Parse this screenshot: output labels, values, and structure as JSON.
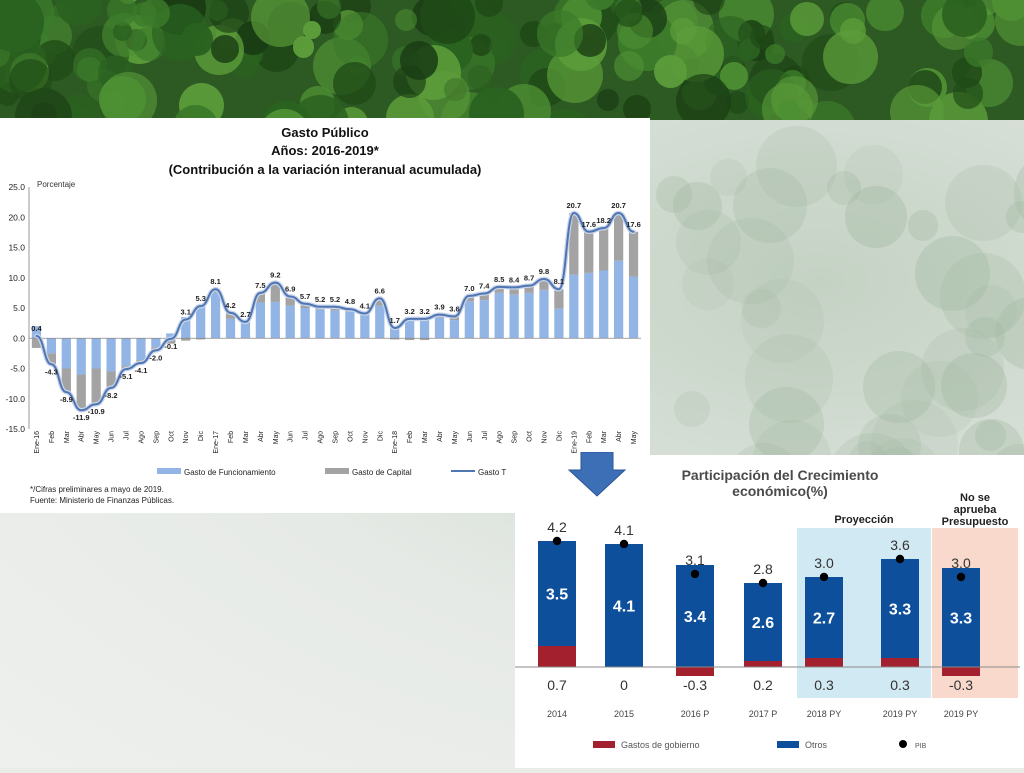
{
  "chart_data": [
    {
      "type": "bar",
      "title": "Gasto Público",
      "subtitle": "Años: 2016-2019*",
      "subtitle2": "(Contribución a la variación interanual acumulada)",
      "ylabel": "Porcentaje",
      "ylim": [
        -15,
        25
      ],
      "yticks": [
        "25.0",
        "20.0",
        "15.0",
        "10.0",
        "5.0",
        "0.0",
        "-5.0",
        "-10.0",
        "-15.0"
      ],
      "categories": [
        "Ene-16",
        "Feb",
        "Mar",
        "Abr",
        "May",
        "Jun",
        "Jul",
        "Ago",
        "Sep",
        "Oct",
        "Nov",
        "Dic",
        "Ene-17",
        "Feb",
        "Mar",
        "Abr",
        "May",
        "Jun",
        "Jul",
        "Ago",
        "Sep",
        "Oct",
        "Nov",
        "Dic",
        "Ene-18",
        "Feb",
        "Mar",
        "Abr",
        "May",
        "Jun",
        "Jul",
        "Ago",
        "Sep",
        "Oct",
        "Nov",
        "Dic",
        "Ene-19",
        "Feb",
        "Mar",
        "Abr",
        "May"
      ],
      "series": [
        {
          "name": "Gasto de Funcionamiento",
          "color": "#92b5e6",
          "values": [
            2.0,
            -2.5,
            -5.0,
            -6.0,
            -5.0,
            -5.5,
            -4.6,
            -3.6,
            -1.5,
            0.8,
            3.5,
            5.5,
            7.5,
            3.2,
            2.7,
            5.9,
            6.0,
            5.4,
            5.0,
            4.8,
            4.6,
            4.4,
            3.8,
            5.4,
            1.9,
            3.5,
            3.5,
            3.4,
            3.0,
            6.1,
            6.3,
            7.5,
            7.2,
            7.5,
            8.0,
            4.9,
            10.5,
            10.8,
            11.2,
            12.8,
            10.2
          ]
        },
        {
          "name": "Gasto de Capital",
          "color": "#a3a3a3",
          "values": [
            -1.6,
            -1.8,
            -3.9,
            -5.9,
            -5.9,
            -2.7,
            -0.5,
            -0.5,
            -0.5,
            -0.9,
            -0.4,
            -0.2,
            0.6,
            1.0,
            0.0,
            1.6,
            3.2,
            1.5,
            0.7,
            0.4,
            0.6,
            0.4,
            0.3,
            1.2,
            -0.2,
            -0.3,
            -0.3,
            0.5,
            0.6,
            0.9,
            1.1,
            1.0,
            1.2,
            1.2,
            1.8,
            3.2,
            10.2,
            6.8,
            7.0,
            7.9,
            7.4
          ]
        },
        {
          "name": "Gasto Total",
          "color": "#4f75b3",
          "values": [
            0.4,
            -4.3,
            -8.9,
            -11.9,
            -10.9,
            -8.2,
            -5.1,
            -4.1,
            -2.0,
            -0.1,
            3.1,
            5.3,
            8.1,
            4.2,
            2.7,
            7.5,
            9.2,
            6.9,
            5.7,
            5.2,
            5.2,
            4.8,
            4.1,
            6.6,
            1.7,
            3.2,
            3.2,
            3.9,
            3.6,
            7.0,
            7.4,
            8.5,
            8.4,
            8.7,
            9.8,
            8.1,
            20.7,
            17.6,
            18.2,
            20.7,
            17.6
          ]
        }
      ],
      "data_labels": [
        "0.4",
        "-4.3",
        "-8.9",
        "-11.9",
        "-10.9",
        "-8.2",
        "-5.1",
        "-4.1",
        "-2.0",
        "-0.1",
        "3.1",
        "5.3",
        "8.1",
        "4.2",
        "2.7",
        "7.5",
        "9.2",
        "6.9",
        "5.7",
        "5.2",
        "5.2",
        "4.8",
        "4.1",
        "6.6",
        "1.7",
        "3.2",
        "3.2",
        "3.9",
        "3.6",
        "7.0",
        "7.4",
        "8.5",
        "8.4",
        "8.7",
        "9.8",
        "8.1",
        "20.7",
        "17.6",
        "18.2",
        "20.7",
        "17.6"
      ],
      "legend_display": [
        "Gasto de Funcionamiento",
        "Gasto de Capital",
        "Gasto T"
      ],
      "legend_position": "bottom",
      "footnote1": "*/Cifras preliminares a mayo de 2019.",
      "footnote2": "Fuente: Ministerio de Finanzas Públicas."
    },
    {
      "type": "bar",
      "title": "Participación del Crecimiento",
      "title2": "económico(%)",
      "categories": [
        "2014",
        "2015",
        "2016 P",
        "2017 P",
        "2018 PY",
        "2019 PY",
        "2019 PY"
      ],
      "series": [
        {
          "name": "Gastos de gobierno",
          "color": "#a3202f",
          "values": [
            0.7,
            0,
            -0.3,
            0.2,
            0.3,
            0.3,
            -0.3
          ],
          "labels": [
            "0.7",
            "0",
            "-0.3",
            "0.2",
            "0.3",
            "0.3",
            "-0.3"
          ]
        },
        {
          "name": "Otros",
          "color": "#0d4f9b",
          "values": [
            3.5,
            4.1,
            3.4,
            2.6,
            2.7,
            3.3,
            3.3
          ],
          "labels": [
            "3.5",
            "4.1",
            "3.4",
            "2.6",
            "2.7",
            "3.3",
            "3.3"
          ]
        },
        {
          "name": "PIB",
          "color": "#000000",
          "values": [
            4.2,
            4.1,
            3.1,
            2.8,
            3.0,
            3.6,
            3.0
          ],
          "labels": [
            "4.2",
            "4.1",
            "3.1",
            "2.8",
            "3.0",
            "3.6",
            "3.0"
          ]
        }
      ],
      "annotations": {
        "projection": "Proyección",
        "no_budget": [
          "No se",
          "aprueba",
          "Presupuesto"
        ],
        "projection_color": "#d1e9f3",
        "no_budget_color": "#f8d9cc"
      },
      "legend_position": "bottom"
    }
  ]
}
